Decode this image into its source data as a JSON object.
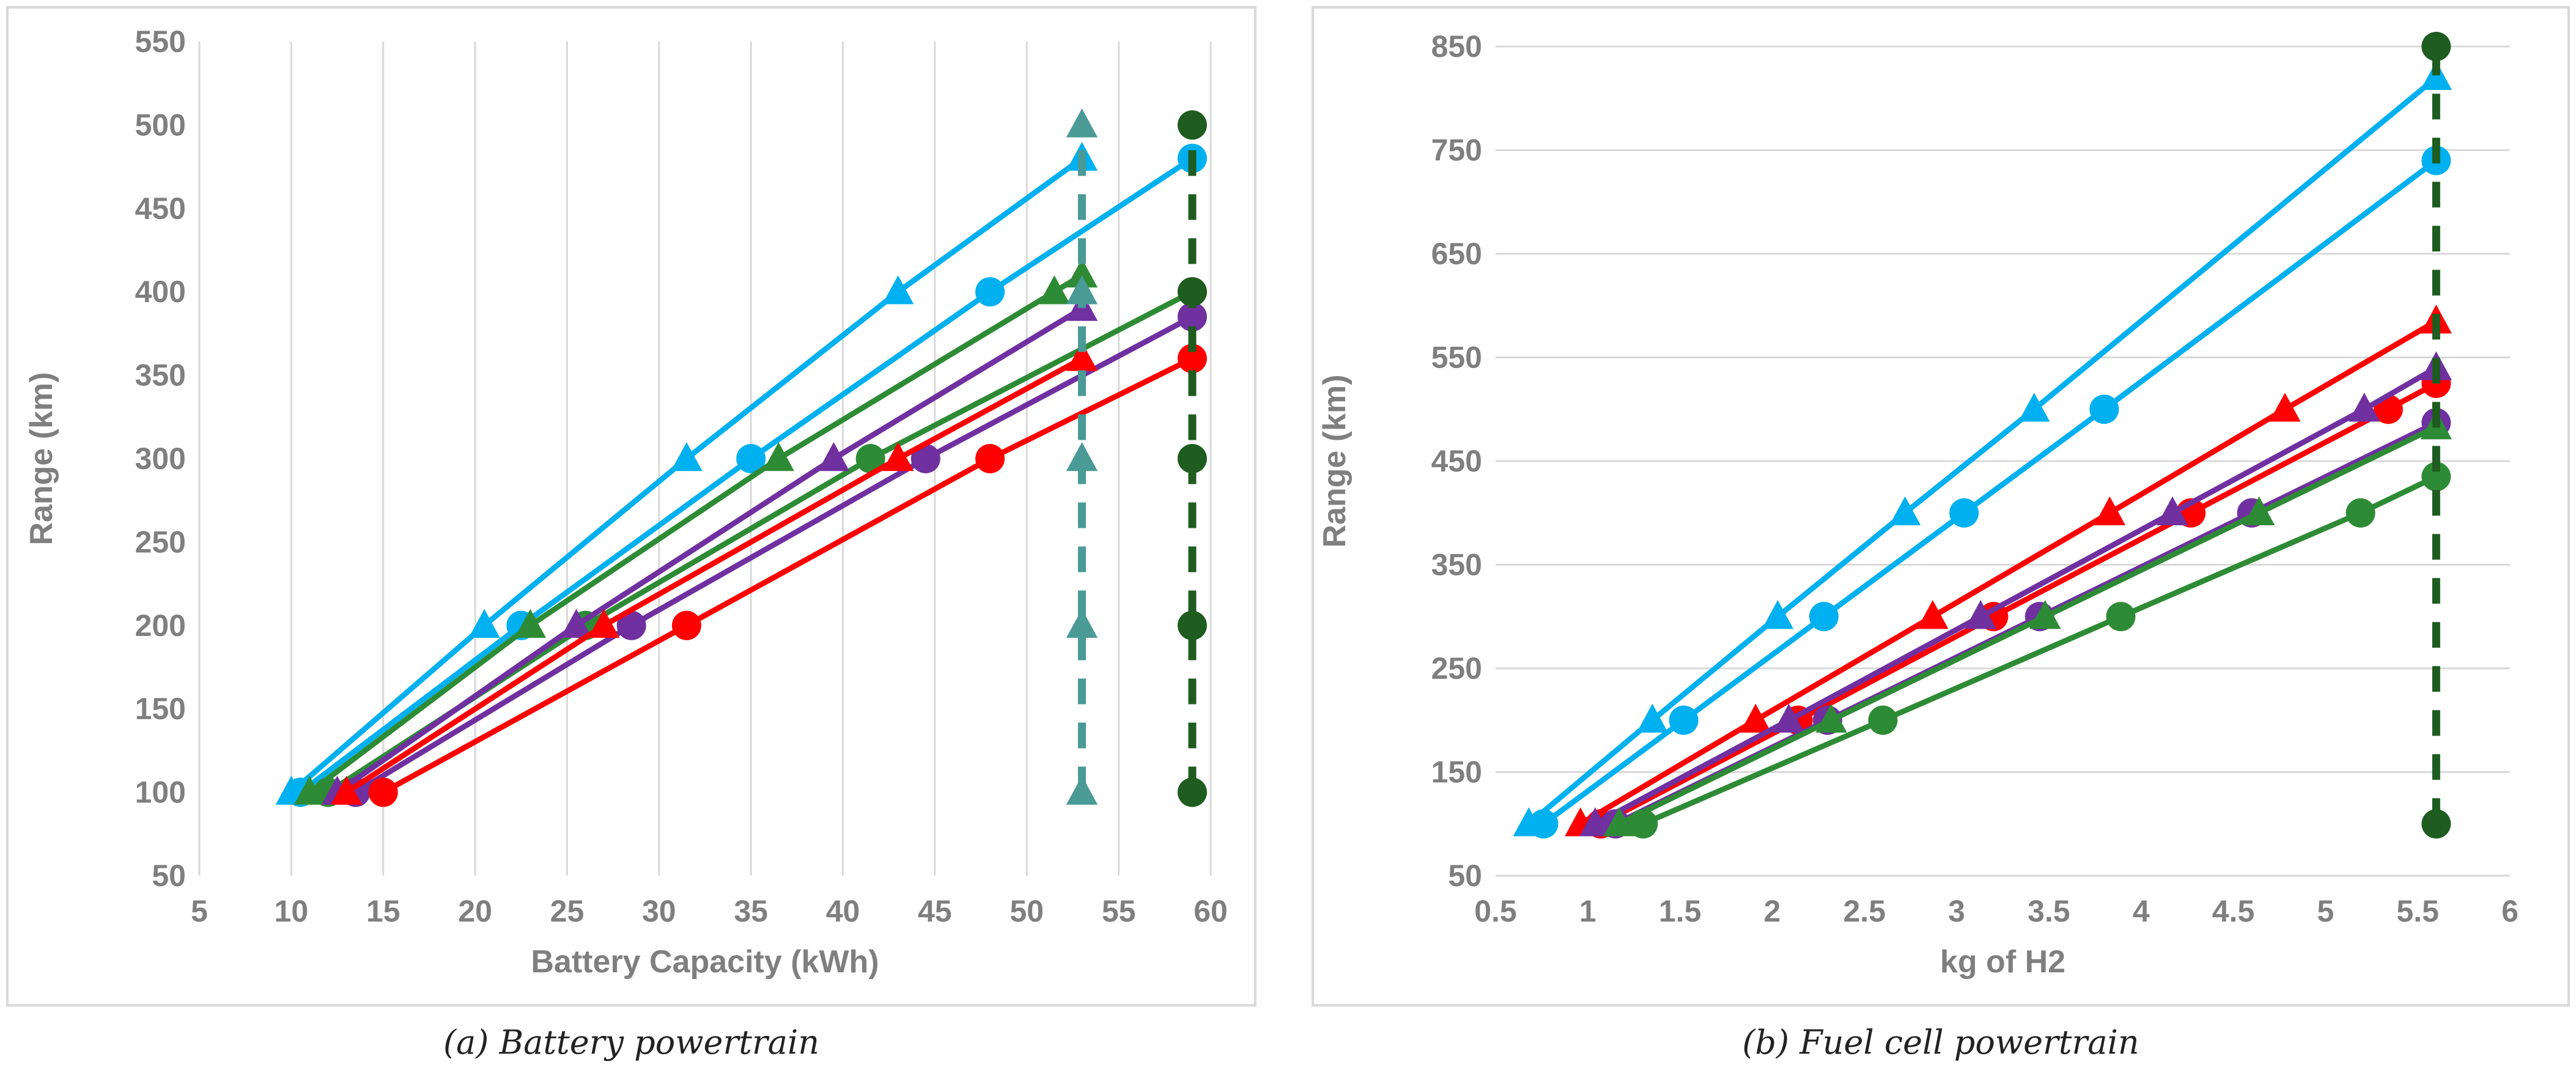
{
  "chart_data": [
    {
      "type": "line",
      "panel": "a",
      "caption": "(a) Battery powertrain",
      "xlabel": "Battery Capacity (kWh)",
      "ylabel": "Range (km)",
      "xlim": [
        5,
        60
      ],
      "ylim": [
        50,
        550
      ],
      "xticks": [
        "5",
        "10",
        "15",
        "20",
        "25",
        "30",
        "35",
        "40",
        "45",
        "50",
        "55",
        "60"
      ],
      "yticks": [
        "50",
        "100",
        "150",
        "200",
        "250",
        "300",
        "350",
        "400",
        "450",
        "500",
        "550"
      ],
      "grid": "vertical",
      "colors": {
        "red": "#ff0000",
        "blue": "#00b0f0",
        "purple": "#7030a0",
        "green": "#2e8b35",
        "teal": "#4a9a96",
        "darkgreen": "#1e5c20"
      },
      "series": [
        {
          "color": "#00b0f0",
          "marker": "triangle",
          "dashed": false,
          "points": [
            [
              10,
              100
            ],
            [
              20.5,
              200
            ],
            [
              31.5,
              300
            ],
            [
              43,
              400
            ],
            [
              53,
              480
            ]
          ]
        },
        {
          "color": "#00b0f0",
          "marker": "circle",
          "dashed": false,
          "points": [
            [
              10.5,
              100
            ],
            [
              22.5,
              200
            ],
            [
              35,
              300
            ],
            [
              48,
              400
            ],
            [
              59,
              480
            ]
          ]
        },
        {
          "color": "#2e8b35",
          "marker": "triangle",
          "dashed": false,
          "points": [
            [
              11,
              100
            ],
            [
              23,
              200
            ],
            [
              36.5,
              300
            ],
            [
              51.5,
              400
            ],
            [
              53,
              410
            ]
          ]
        },
        {
          "color": "#2e8b35",
          "marker": "circle",
          "dashed": false,
          "points": [
            [
              12,
              100
            ],
            [
              26,
              200
            ],
            [
              41.5,
              300
            ],
            [
              59,
              400
            ]
          ]
        },
        {
          "color": "#7030a0",
          "marker": "triangle",
          "dashed": false,
          "points": [
            [
              12.5,
              100
            ],
            [
              25.5,
              200
            ],
            [
              39.5,
              300
            ],
            [
              53,
              390
            ]
          ]
        },
        {
          "color": "#7030a0",
          "marker": "circle",
          "dashed": false,
          "points": [
            [
              13.5,
              100
            ],
            [
              28.5,
              200
            ],
            [
              44.5,
              300
            ],
            [
              59,
              385
            ]
          ]
        },
        {
          "color": "#ff0000",
          "marker": "triangle",
          "dashed": false,
          "points": [
            [
              13,
              100
            ],
            [
              27,
              200
            ],
            [
              43,
              300
            ],
            [
              53,
              360
            ]
          ]
        },
        {
          "color": "#ff0000",
          "marker": "circle",
          "dashed": false,
          "points": [
            [
              15,
              100
            ],
            [
              31.5,
              200
            ],
            [
              48,
              300
            ],
            [
              59,
              360
            ]
          ]
        },
        {
          "color": "#4a9a96",
          "marker": "triangle",
          "dashed": true,
          "points": [
            [
              53,
              100
            ],
            [
              53,
              200
            ],
            [
              53,
              300
            ],
            [
              53,
              400
            ],
            [
              53,
              500
            ]
          ]
        },
        {
          "color": "#1e5c20",
          "marker": "circle",
          "dashed": true,
          "points": [
            [
              59,
              100
            ],
            [
              59,
              200
            ],
            [
              59,
              300
            ],
            [
              59,
              400
            ],
            [
              59,
              500
            ]
          ]
        }
      ]
    },
    {
      "type": "line",
      "panel": "b",
      "caption": "(b) Fuel cell powertrain",
      "xlabel": "kg of H2",
      "ylabel": "Range (km)",
      "xlim": [
        0.5,
        6
      ],
      "ylim": [
        50,
        850
      ],
      "xticks": [
        "0.5",
        "1",
        "1.5",
        "2",
        "2.5",
        "3",
        "3.5",
        "4",
        "4.5",
        "5",
        "5.5",
        "6"
      ],
      "yticks": [
        "50",
        "150",
        "250",
        "350",
        "450",
        "550",
        "650",
        "750",
        "850"
      ],
      "grid": "horizontal",
      "colors": {
        "red": "#ff0000",
        "blue": "#00b0f0",
        "purple": "#7030a0",
        "green": "#2e8b35",
        "darkgreen": "#1e5c20"
      },
      "series": [
        {
          "color": "#00b0f0",
          "marker": "triangle",
          "dashed": false,
          "points": [
            [
              0.68,
              100
            ],
            [
              1.35,
              200
            ],
            [
              2.03,
              300
            ],
            [
              2.72,
              400
            ],
            [
              3.42,
              500
            ],
            [
              5.6,
              820
            ]
          ]
        },
        {
          "color": "#00b0f0",
          "marker": "circle",
          "dashed": false,
          "points": [
            [
              0.76,
              100
            ],
            [
              1.52,
              200
            ],
            [
              2.28,
              300
            ],
            [
              3.04,
              400
            ],
            [
              3.8,
              500
            ],
            [
              5.6,
              740
            ]
          ]
        },
        {
          "color": "#ff0000",
          "marker": "triangle",
          "dashed": false,
          "points": [
            [
              0.96,
              100
            ],
            [
              1.91,
              200
            ],
            [
              2.87,
              300
            ],
            [
              3.83,
              400
            ],
            [
              4.78,
              500
            ],
            [
              5.6,
              585
            ]
          ]
        },
        {
          "color": "#ff0000",
          "marker": "circle",
          "dashed": false,
          "points": [
            [
              1.07,
              100
            ],
            [
              2.14,
              200
            ],
            [
              3.2,
              300
            ],
            [
              4.27,
              400
            ],
            [
              5.34,
              500
            ],
            [
              5.6,
              525
            ]
          ]
        },
        {
          "color": "#7030a0",
          "marker": "triangle",
          "dashed": false,
          "points": [
            [
              1.04,
              100
            ],
            [
              2.09,
              200
            ],
            [
              3.13,
              300
            ],
            [
              4.17,
              400
            ],
            [
              5.21,
              500
            ],
            [
              5.6,
              540
            ]
          ]
        },
        {
          "color": "#7030a0",
          "marker": "circle",
          "dashed": false,
          "points": [
            [
              1.15,
              100
            ],
            [
              2.3,
              200
            ],
            [
              3.45,
              300
            ],
            [
              4.6,
              400
            ],
            [
              5.6,
              487
            ]
          ]
        },
        {
          "color": "#2e8b35",
          "marker": "triangle",
          "dashed": false,
          "points": [
            [
              1.17,
              100
            ],
            [
              2.32,
              200
            ],
            [
              3.48,
              300
            ],
            [
              4.64,
              400
            ],
            [
              5.6,
              483
            ]
          ]
        },
        {
          "color": "#2e8b35",
          "marker": "circle",
          "dashed": false,
          "points": [
            [
              1.3,
              100
            ],
            [
              2.6,
              200
            ],
            [
              3.89,
              300
            ],
            [
              5.19,
              400
            ],
            [
              5.6,
              435
            ]
          ]
        },
        {
          "color": "#1e5c20",
          "marker": "circle",
          "dashed": true,
          "points": [
            [
              5.6,
              100
            ],
            [
              5.6,
              850
            ]
          ]
        }
      ]
    }
  ]
}
